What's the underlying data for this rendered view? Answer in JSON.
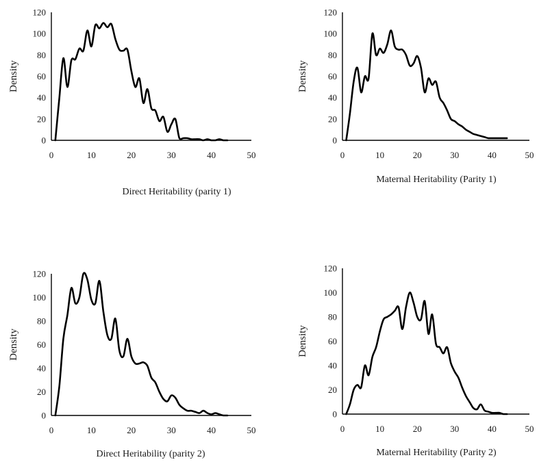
{
  "chart_data": [
    {
      "type": "line",
      "ylabel": "Density",
      "xlabel": "Direct Heritability (parity 1)",
      "xlim": [
        0,
        50
      ],
      "ylim": [
        0,
        120
      ],
      "xticks": [
        0,
        10,
        20,
        30,
        40,
        50
      ],
      "yticks": [
        0,
        20,
        40,
        60,
        80,
        100,
        120
      ],
      "grid": false,
      "series": [
        {
          "color": "#000000",
          "x": [
            1,
            2,
            3,
            4,
            5,
            6,
            7,
            8,
            9,
            10,
            11,
            12,
            13,
            14,
            15,
            16,
            17,
            18,
            19,
            20,
            21,
            22,
            23,
            24,
            25,
            26,
            27,
            28,
            29,
            30,
            31,
            32,
            33,
            34,
            35,
            36,
            37,
            38,
            39,
            40,
            41,
            42,
            43,
            44
          ],
          "y": [
            0,
            40,
            77,
            50,
            75,
            76,
            86,
            84,
            103,
            88,
            108,
            105,
            110,
            106,
            109,
            95,
            85,
            84,
            85,
            65,
            50,
            58,
            35,
            48,
            30,
            28,
            18,
            22,
            8,
            15,
            20,
            2,
            2,
            2,
            1,
            1,
            1,
            0,
            1,
            0,
            0,
            1,
            0,
            0
          ]
        }
      ]
    },
    {
      "type": "line",
      "ylabel": "Density",
      "xlabel": "Maternal Heritability (Parity 1)",
      "xlim": [
        0,
        50
      ],
      "ylim": [
        0,
        120
      ],
      "xticks": [
        0,
        10,
        20,
        30,
        40,
        50
      ],
      "yticks": [
        0,
        20,
        40,
        60,
        80,
        100,
        120
      ],
      "grid": false,
      "series": [
        {
          "color": "#000000",
          "x": [
            1,
            2,
            3,
            4,
            5,
            6,
            7,
            8,
            9,
            10,
            11,
            12,
            13,
            14,
            15,
            16,
            17,
            18,
            19,
            20,
            21,
            22,
            23,
            24,
            25,
            26,
            27,
            28,
            29,
            30,
            31,
            32,
            33,
            34,
            35,
            36,
            37,
            38,
            39,
            40,
            41,
            42,
            43,
            44
          ],
          "y": [
            0,
            25,
            55,
            68,
            45,
            60,
            58,
            100,
            80,
            86,
            82,
            90,
            103,
            88,
            85,
            85,
            80,
            70,
            72,
            79,
            68,
            45,
            58,
            52,
            55,
            40,
            35,
            28,
            20,
            18,
            15,
            13,
            10,
            8,
            6,
            5,
            4,
            3,
            2,
            2,
            2,
            2,
            2,
            2
          ]
        }
      ]
    },
    {
      "type": "line",
      "ylabel": "Density",
      "xlabel": "Direct Heritability (parity 2)",
      "xlim": [
        0,
        50
      ],
      "ylim": [
        0,
        120
      ],
      "xticks": [
        0,
        10,
        20,
        30,
        40,
        50
      ],
      "yticks": [
        0,
        20,
        40,
        60,
        80,
        100,
        120
      ],
      "grid": false,
      "series": [
        {
          "color": "#000000",
          "x": [
            1,
            2,
            3,
            4,
            5,
            6,
            7,
            8,
            9,
            10,
            11,
            12,
            13,
            14,
            15,
            16,
            17,
            18,
            19,
            20,
            21,
            22,
            23,
            24,
            25,
            26,
            27,
            28,
            29,
            30,
            31,
            32,
            33,
            34,
            35,
            36,
            37,
            38,
            39,
            40,
            41,
            42,
            43,
            44
          ],
          "y": [
            0,
            25,
            65,
            85,
            108,
            95,
            100,
            120,
            115,
            98,
            95,
            114,
            88,
            68,
            65,
            82,
            55,
            50,
            65,
            50,
            44,
            44,
            45,
            42,
            32,
            28,
            20,
            14,
            12,
            17,
            15,
            9,
            6,
            4,
            4,
            3,
            2,
            4,
            2,
            1,
            2,
            1,
            0,
            0
          ]
        }
      ]
    },
    {
      "type": "line",
      "ylabel": "Density",
      "xlabel": "Maternal Heritability (Parity 2)",
      "xlim": [
        0,
        50
      ],
      "ylim": [
        0,
        120
      ],
      "xticks": [
        0,
        10,
        20,
        30,
        40,
        50
      ],
      "yticks": [
        0,
        20,
        40,
        60,
        80,
        100,
        120
      ],
      "grid": false,
      "series": [
        {
          "color": "#000000",
          "x": [
            1,
            2,
            3,
            4,
            5,
            6,
            7,
            8,
            9,
            10,
            11,
            12,
            13,
            14,
            15,
            16,
            17,
            18,
            19,
            20,
            21,
            22,
            23,
            24,
            25,
            26,
            27,
            28,
            29,
            30,
            31,
            32,
            33,
            34,
            35,
            36,
            37,
            38,
            39,
            40,
            41,
            42,
            43,
            44
          ],
          "y": [
            0,
            8,
            20,
            24,
            22,
            40,
            32,
            47,
            55,
            68,
            78,
            80,
            82,
            85,
            88,
            70,
            88,
            100,
            92,
            80,
            78,
            93,
            66,
            82,
            58,
            55,
            50,
            55,
            42,
            35,
            30,
            22,
            15,
            10,
            5,
            4,
            8,
            3,
            2,
            1,
            1,
            1,
            0,
            0
          ]
        }
      ]
    }
  ]
}
